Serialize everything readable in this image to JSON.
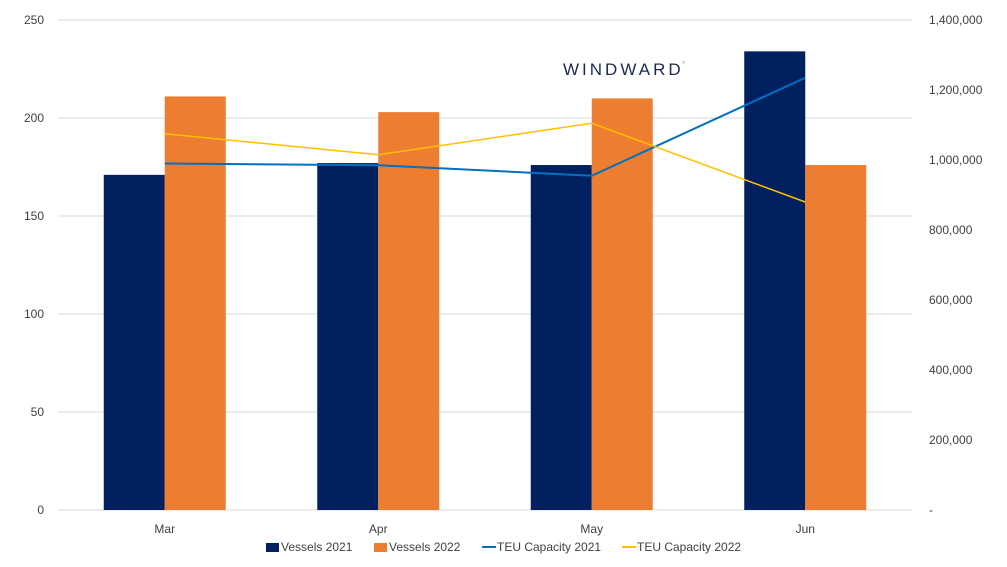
{
  "watermark": {
    "text": "WINDWARD",
    "mark": "°"
  },
  "chart_data": {
    "type": "bar",
    "categories": [
      "Mar",
      "Apr",
      "May",
      "Jun"
    ],
    "y_left": {
      "range": [
        0,
        250
      ],
      "ticks": [
        0,
        50,
        100,
        150,
        200,
        250
      ],
      "tick_labels": [
        "0",
        "50",
        "100",
        "150",
        "200",
        "250"
      ]
    },
    "y_right": {
      "range": [
        0,
        1400000
      ],
      "ticks": [
        0,
        200000,
        400000,
        600000,
        800000,
        1000000,
        1200000,
        1400000
      ],
      "tick_labels": [
        "-",
        "200,000",
        "400,000",
        "600,000",
        "800,000",
        "1,000,000",
        "1,200,000",
        "1,400,000"
      ]
    },
    "grid": true,
    "legend_position": "bottom",
    "series": [
      {
        "name": "Vessels 2021",
        "kind": "bar",
        "axis": "left",
        "color": "#002060",
        "values": [
          171,
          177,
          176,
          234
        ]
      },
      {
        "name": "Vessels 2022",
        "kind": "bar",
        "axis": "left",
        "color": "#ED7D31",
        "values": [
          211,
          203,
          210,
          176
        ]
      },
      {
        "name": "TEU Capacity 2021",
        "kind": "line",
        "axis": "right",
        "color": "#0070C0",
        "values": [
          990000,
          985000,
          955000,
          1235000
        ]
      },
      {
        "name": "TEU Capacity 2022",
        "kind": "line",
        "axis": "right",
        "color": "#FFC000",
        "values": [
          1075000,
          1015000,
          1105000,
          880000
        ]
      }
    ]
  }
}
